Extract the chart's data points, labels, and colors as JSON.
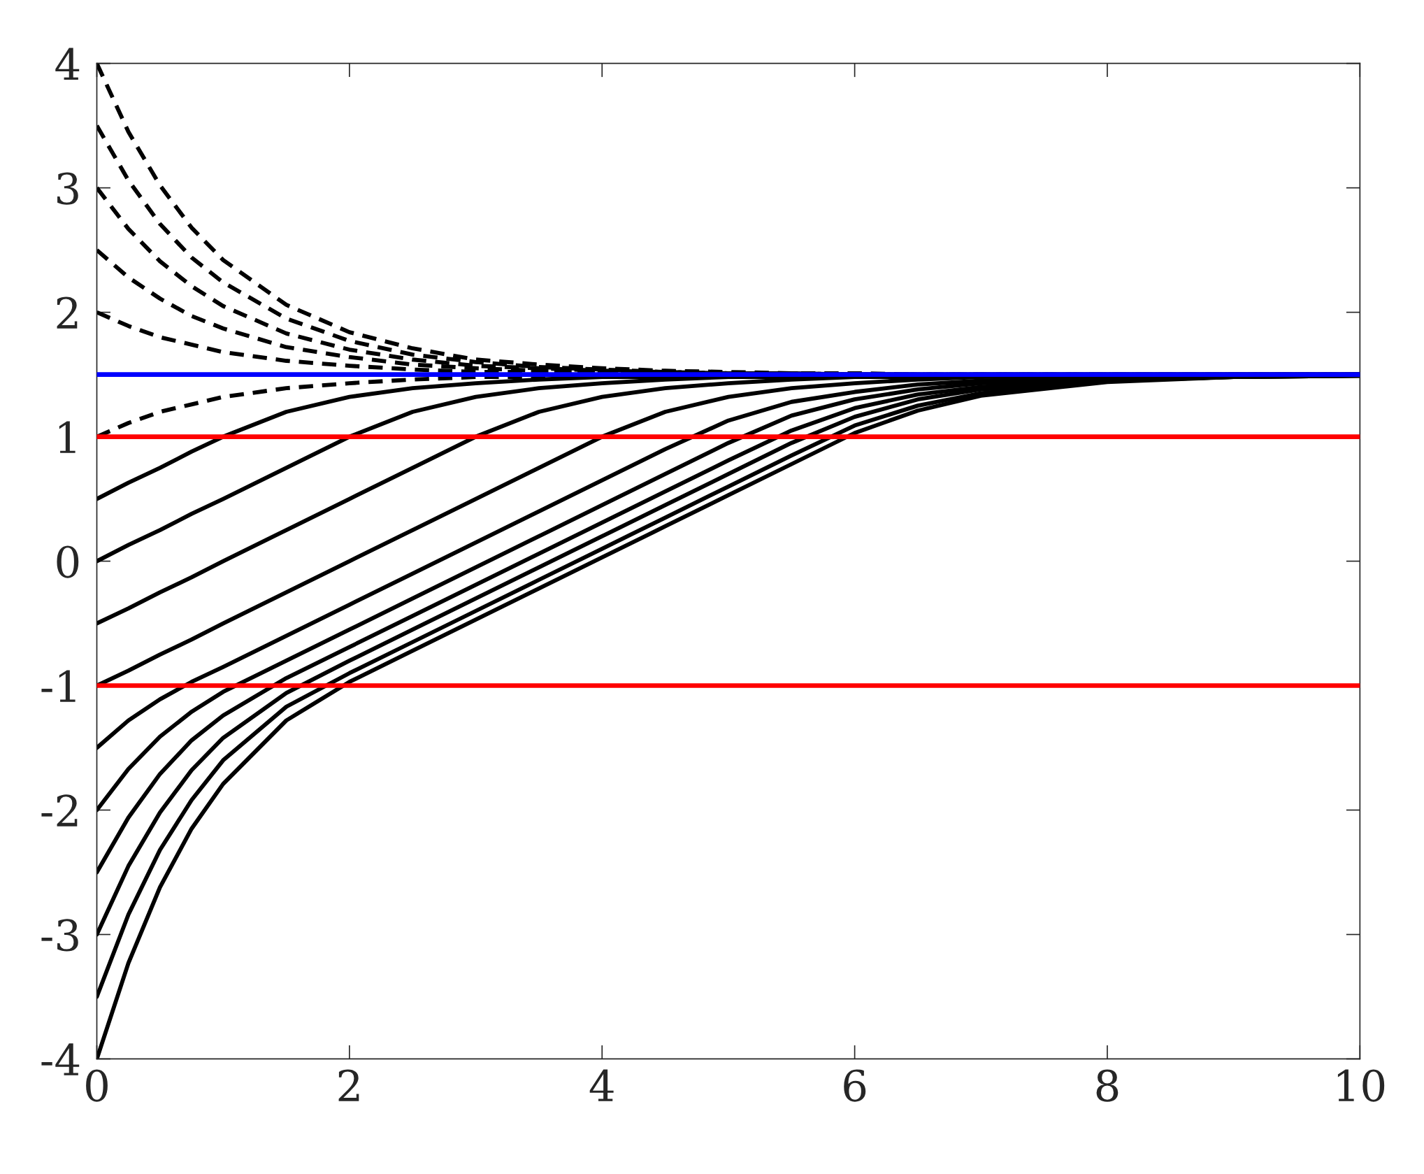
{
  "chart_data": {
    "type": "line",
    "x": [
      0,
      0.25,
      0.5,
      0.75,
      1,
      1.5,
      2,
      2.5,
      3,
      3.5,
      4,
      4.5,
      5,
      5.5,
      6,
      6.5,
      7,
      8,
      9,
      10
    ],
    "series": [
      {
        "color": "#000000",
        "line_style": "dashed",
        "values": [
          4,
          3.45,
          3.02,
          2.68,
          2.42,
          2.06,
          1.84,
          1.71,
          1.62,
          1.58,
          1.55,
          1.53,
          1.52,
          1.51,
          1.51,
          1.5,
          1.5,
          1.5,
          1.5,
          1.5
        ]
      },
      {
        "color": "#000000",
        "line_style": "dashed",
        "values": [
          3.5,
          3.06,
          2.71,
          2.44,
          2.24,
          1.95,
          1.77,
          1.66,
          1.6,
          1.56,
          1.54,
          1.52,
          1.51,
          1.51,
          1.5,
          1.5,
          1.5,
          1.5,
          1.5,
          1.5
        ]
      },
      {
        "color": "#000000",
        "line_style": "dashed",
        "values": [
          3,
          2.67,
          2.41,
          2.21,
          2.05,
          1.83,
          1.7,
          1.62,
          1.57,
          1.55,
          1.53,
          1.52,
          1.51,
          1.51,
          1.5,
          1.5,
          1.5,
          1.5,
          1.5,
          1.5
        ]
      },
      {
        "color": "#000000",
        "line_style": "dashed",
        "values": [
          2.5,
          2.28,
          2.11,
          1.97,
          1.87,
          1.72,
          1.64,
          1.58,
          1.55,
          1.53,
          1.52,
          1.51,
          1.51,
          1.5,
          1.5,
          1.5,
          1.5,
          1.5,
          1.5,
          1.5
        ]
      },
      {
        "color": "#000000",
        "line_style": "dashed",
        "values": [
          2,
          1.89,
          1.8,
          1.74,
          1.68,
          1.61,
          1.57,
          1.54,
          1.52,
          1.52,
          1.51,
          1.51,
          1.5,
          1.5,
          1.5,
          1.5,
          1.5,
          1.5,
          1.5,
          1.5
        ]
      },
      {
        "color": "#000000",
        "line_style": "dashed",
        "values": [
          1,
          1.11,
          1.2,
          1.26,
          1.32,
          1.39,
          1.43,
          1.46,
          1.48,
          1.48,
          1.49,
          1.49,
          1.5,
          1.5,
          1.5,
          1.5,
          1.5,
          1.5,
          1.5,
          1.5
        ]
      },
      {
        "color": "#000000",
        "line_style": "solid",
        "values": [
          0.5,
          0.63,
          0.75,
          0.88,
          1,
          1.2,
          1.32,
          1.39,
          1.43,
          1.46,
          1.48,
          1.48,
          1.49,
          1.49,
          1.5,
          1.5,
          1.5,
          1.5,
          1.5,
          1.5
        ]
      },
      {
        "color": "#000000",
        "line_style": "solid",
        "values": [
          0,
          0.13,
          0.25,
          0.38,
          0.5,
          0.75,
          1,
          1.2,
          1.32,
          1.39,
          1.43,
          1.46,
          1.48,
          1.48,
          1.49,
          1.49,
          1.5,
          1.5,
          1.5,
          1.5
        ]
      },
      {
        "color": "#000000",
        "line_style": "solid",
        "values": [
          -0.5,
          -0.38,
          -0.25,
          -0.13,
          0,
          0.25,
          0.5,
          0.75,
          1,
          1.2,
          1.32,
          1.39,
          1.43,
          1.46,
          1.48,
          1.48,
          1.49,
          1.5,
          1.5,
          1.5
        ]
      },
      {
        "color": "#000000",
        "line_style": "solid",
        "values": [
          -1,
          -0.88,
          -0.75,
          -0.63,
          -0.5,
          -0.25,
          0,
          0.25,
          0.5,
          0.75,
          1,
          1.2,
          1.32,
          1.39,
          1.43,
          1.46,
          1.48,
          1.49,
          1.5,
          1.5
        ]
      },
      {
        "color": "#000000",
        "line_style": "solid",
        "values": [
          -1.5,
          -1.28,
          -1.11,
          -0.97,
          -0.85,
          -0.6,
          -0.35,
          -0.1,
          0.15,
          0.4,
          0.65,
          0.9,
          1.13,
          1.28,
          1.36,
          1.42,
          1.45,
          1.48,
          1.49,
          1.5
        ]
      },
      {
        "color": "#000000",
        "line_style": "solid",
        "values": [
          -2,
          -1.67,
          -1.41,
          -1.21,
          -1.05,
          -0.8,
          -0.55,
          -0.3,
          -0.05,
          0.2,
          0.45,
          0.7,
          0.95,
          1.17,
          1.3,
          1.38,
          1.43,
          1.47,
          1.49,
          1.5
        ]
      },
      {
        "color": "#000000",
        "line_style": "solid",
        "values": [
          -2.5,
          -2.06,
          -1.71,
          -1.44,
          -1.24,
          -0.94,
          -0.69,
          -0.44,
          -0.19,
          0.06,
          0.31,
          0.56,
          0.81,
          1.05,
          1.23,
          1.34,
          1.4,
          1.46,
          1.49,
          1.5
        ]
      },
      {
        "color": "#000000",
        "line_style": "solid",
        "values": [
          -3,
          -2.45,
          -2.02,
          -1.68,
          -1.42,
          -1.06,
          -0.8,
          -0.55,
          -0.3,
          -0.05,
          0.2,
          0.45,
          0.7,
          0.95,
          1.16,
          1.3,
          1.38,
          1.45,
          1.48,
          1.49
        ]
      },
      {
        "color": "#000000",
        "line_style": "solid",
        "values": [
          -3.5,
          -2.84,
          -2.32,
          -1.92,
          -1.6,
          -1.17,
          -0.9,
          -0.65,
          -0.4,
          -0.15,
          0.1,
          0.35,
          0.6,
          0.85,
          1.09,
          1.25,
          1.35,
          1.45,
          1.48,
          1.49
        ]
      },
      {
        "color": "#000000",
        "line_style": "solid",
        "values": [
          -4,
          -3.23,
          -2.62,
          -2.15,
          -1.79,
          -1.28,
          -0.97,
          -0.72,
          -0.47,
          -0.22,
          0.03,
          0.28,
          0.53,
          0.78,
          1.03,
          1.21,
          1.33,
          1.44,
          1.48,
          1.49
        ]
      }
    ],
    "ref_lines": [
      {
        "axis": "y",
        "value": 1.5,
        "color": "#0000ff"
      },
      {
        "axis": "y",
        "value": 1,
        "color": "#ff0000"
      },
      {
        "axis": "y",
        "value": -1,
        "color": "#ff0000"
      }
    ],
    "xlim": [
      0,
      10
    ],
    "xticks": [
      0,
      2,
      4,
      6,
      8,
      10
    ],
    "ylim": [
      -4,
      4
    ],
    "yticks": [
      -4,
      -3,
      -2,
      -1,
      0,
      1,
      2,
      3,
      4
    ],
    "grid": false
  }
}
